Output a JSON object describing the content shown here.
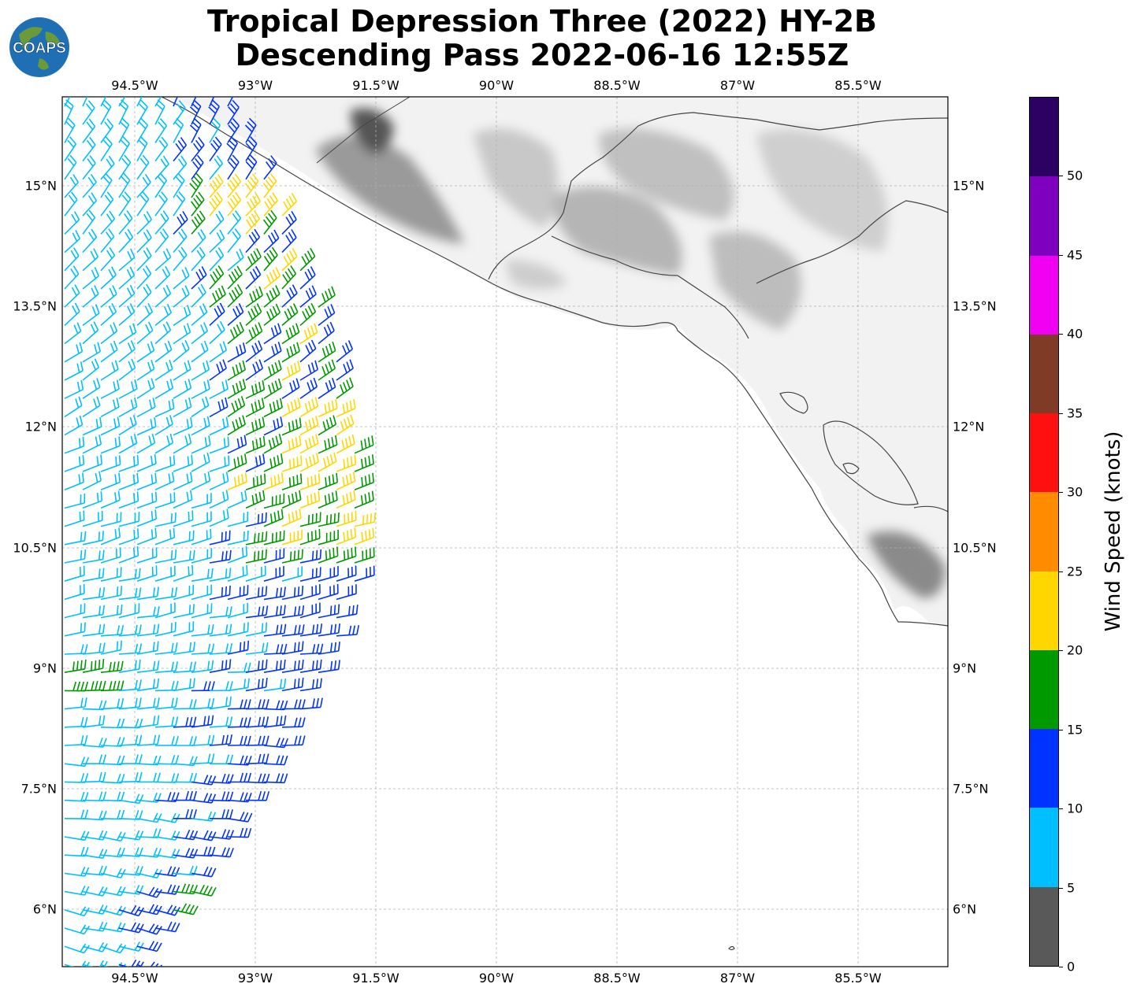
{
  "title": {
    "line1": "Tropical Depression Three (2022) HY-2B",
    "line2": "Descending Pass 2022-06-16 12:55Z"
  },
  "logo": {
    "text": "COAPS",
    "colors": {
      "ocean": "#1f6fb4",
      "land": "#6a9a3a",
      "text": "#ffffff"
    }
  },
  "map": {
    "lon_labels": [
      "94.5°W",
      "93°W",
      "91.5°W",
      "90°W",
      "88.5°W",
      "87°W",
      "85.5°W"
    ],
    "lat_labels": [
      "15°N",
      "13.5°N",
      "12°N",
      "10.5°N",
      "9°N",
      "7.5°N",
      "6°N"
    ],
    "coastline_color": "#444444",
    "grid_color": "#b0b0b0"
  },
  "colorbar": {
    "label": "Wind Speed (knots)",
    "ticks": [
      "0",
      "5",
      "10",
      "15",
      "20",
      "25",
      "30",
      "35",
      "40",
      "45",
      "50"
    ],
    "colors": [
      "#595959",
      "#00bfff",
      "#0033ff",
      "#009900",
      "#ffd700",
      "#ff8c00",
      "#ff1010",
      "#7f3b26",
      "#f000f0",
      "#8000c0",
      "#2d0063"
    ]
  }
}
